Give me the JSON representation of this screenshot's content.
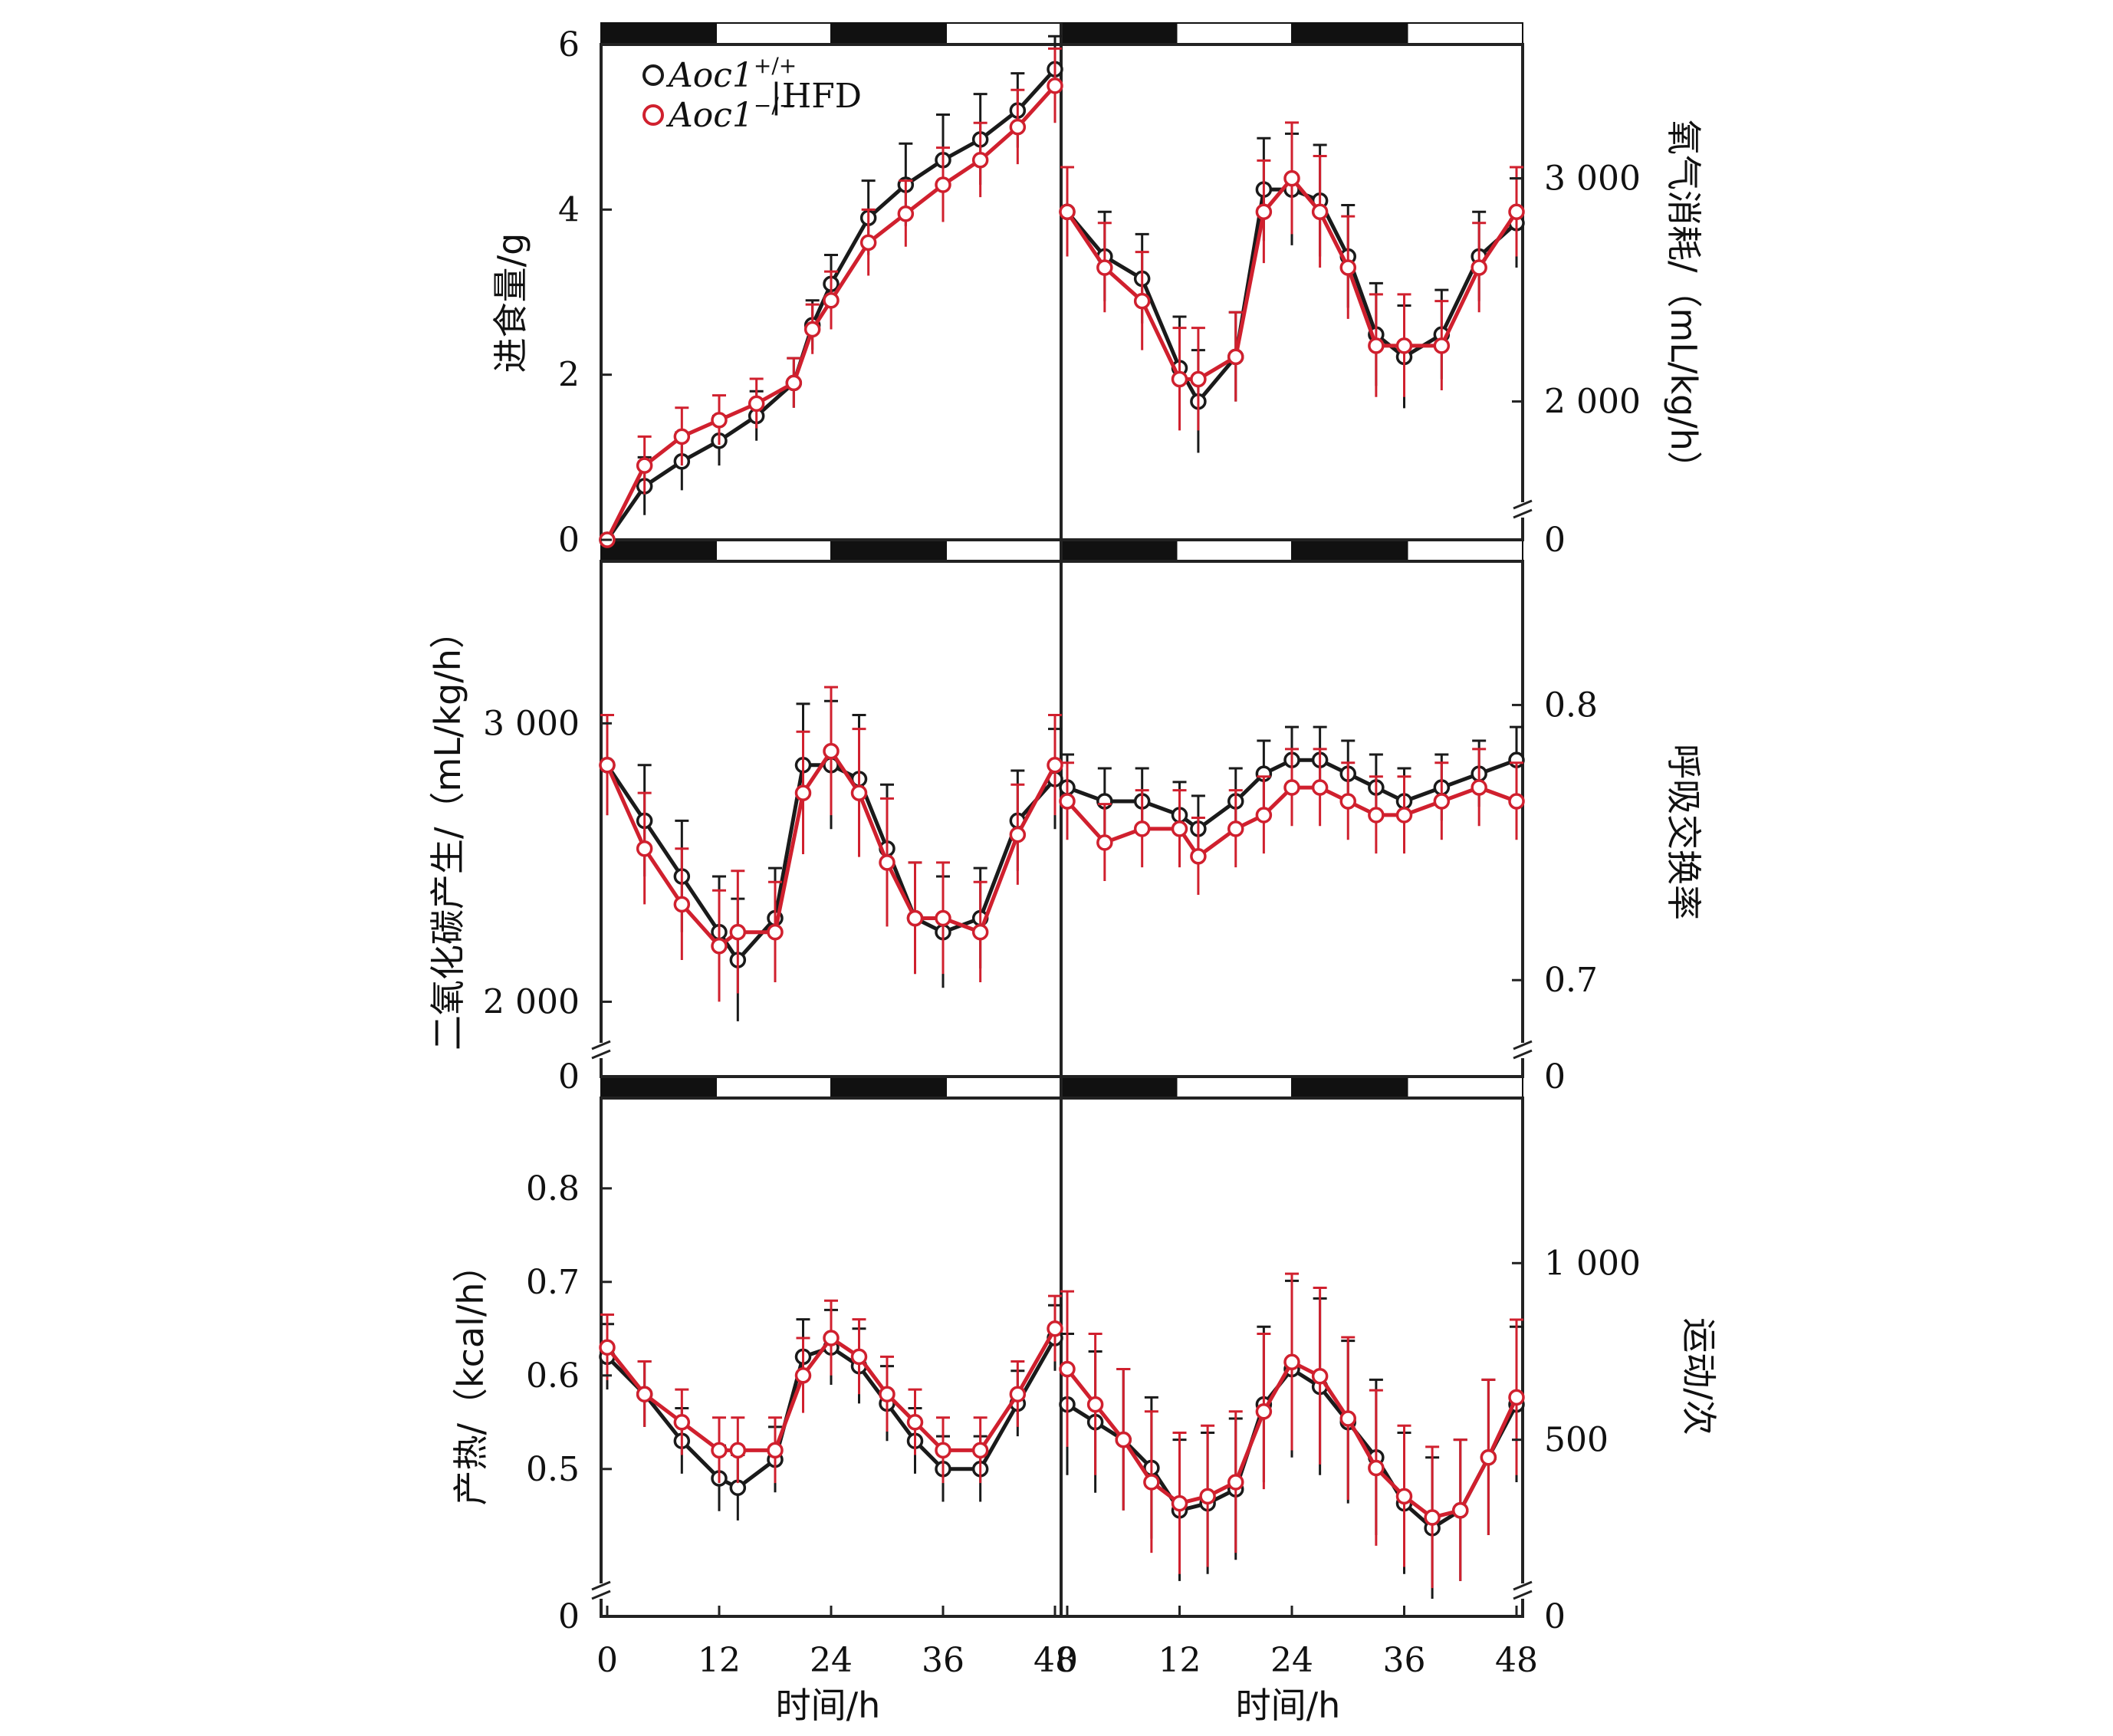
{
  "colors": {
    "wt": "#1a1a1a",
    "ko": "#d0202e"
  },
  "legend": {
    "wt_gene": "Aoc1",
    "wt_sup": "+/+",
    "ko_gene": "Aoc1",
    "ko_sup": "−/−",
    "condition": "|HFD"
  },
  "x_axis": {
    "ticks": [
      0,
      12,
      24,
      36,
      48
    ],
    "title": "时间/h"
  },
  "light_dark_bar": [
    {
      "start": 0,
      "end": 12,
      "phase": "dark"
    },
    {
      "start": 12,
      "end": 24,
      "phase": "light"
    },
    {
      "start": 24,
      "end": 36,
      "phase": "dark"
    },
    {
      "start": 36,
      "end": 48,
      "phase": "light"
    }
  ],
  "chart_data": [
    {
      "type": "line",
      "id": "food",
      "ylabel": "进食量/g",
      "xlim": [
        0,
        48
      ],
      "ylim": [
        0,
        6
      ],
      "ytick_values": [
        0,
        2,
        4,
        6
      ],
      "ytick_labels": [
        "0",
        "2",
        "4",
        "6"
      ],
      "axis_break": false,
      "series": [
        {
          "id": "wt",
          "x": [
            0,
            4,
            8,
            12,
            16,
            20,
            22,
            24,
            28,
            32,
            36,
            40,
            44,
            48
          ],
          "y": [
            0,
            0.65,
            0.95,
            1.2,
            1.5,
            1.9,
            2.6,
            3.1,
            3.9,
            4.3,
            4.6,
            4.85,
            5.2,
            5.7
          ],
          "err": [
            0.05,
            0.35,
            0.35,
            0.3,
            0.3,
            0.3,
            0.3,
            0.35,
            0.45,
            0.5,
            0.55,
            0.55,
            0.45,
            0.4
          ]
        },
        {
          "id": "ko",
          "x": [
            0,
            4,
            8,
            12,
            16,
            20,
            22,
            24,
            28,
            32,
            36,
            40,
            44,
            48
          ],
          "y": [
            0,
            0.9,
            1.25,
            1.45,
            1.65,
            1.9,
            2.55,
            2.9,
            3.6,
            3.95,
            4.3,
            4.6,
            5.0,
            5.5
          ],
          "err": [
            0.05,
            0.35,
            0.35,
            0.3,
            0.3,
            0.3,
            0.3,
            0.35,
            0.4,
            0.4,
            0.45,
            0.45,
            0.45,
            0.45
          ]
        }
      ]
    },
    {
      "type": "line",
      "id": "vo2",
      "ylabel": "氧气消耗/（mL/kg/h）",
      "xlim": [
        0,
        48
      ],
      "ylim": [
        1600,
        3600
      ],
      "ytick_values": [
        2000,
        3000
      ],
      "ytick_labels": [
        "2 000",
        "3 000"
      ],
      "zero_label": "0",
      "axis_break": true,
      "series": [
        {
          "id": "wt",
          "x": [
            0,
            4,
            8,
            12,
            14,
            18,
            21,
            24,
            27,
            30,
            33,
            36,
            40,
            44,
            48
          ],
          "y": [
            2850,
            2650,
            2550,
            2150,
            2000,
            2200,
            2950,
            2950,
            2900,
            2650,
            2300,
            2200,
            2300,
            2650,
            2800
          ],
          "err": [
            200,
            200,
            200,
            230,
            230,
            200,
            230,
            250,
            250,
            230,
            230,
            230,
            200,
            200,
            200
          ]
        },
        {
          "id": "ko",
          "x": [
            0,
            4,
            8,
            12,
            14,
            18,
            21,
            24,
            27,
            30,
            33,
            36,
            40,
            44,
            48
          ],
          "y": [
            2850,
            2600,
            2450,
            2100,
            2100,
            2200,
            2850,
            3000,
            2850,
            2600,
            2250,
            2250,
            2250,
            2600,
            2850
          ],
          "err": [
            200,
            200,
            220,
            230,
            230,
            200,
            230,
            250,
            250,
            230,
            230,
            230,
            200,
            200,
            200
          ]
        }
      ]
    },
    {
      "type": "line",
      "id": "vco2",
      "ylabel": "二氧化碳产生/（mL/kg/h）",
      "xlim": [
        0,
        48
      ],
      "ylim": [
        1880,
        3560
      ],
      "ytick_values": [
        2000,
        3000
      ],
      "ytick_labels": [
        "2 000",
        "3 000"
      ],
      "zero_label": "0",
      "axis_break": true,
      "series": [
        {
          "id": "wt",
          "x": [
            0,
            4,
            8,
            12,
            14,
            18,
            21,
            24,
            27,
            30,
            33,
            36,
            40,
            44,
            48
          ],
          "y": [
            2850,
            2650,
            2450,
            2250,
            2150,
            2300,
            2850,
            2850,
            2800,
            2550,
            2300,
            2250,
            2300,
            2650,
            2800
          ],
          "err": [
            180,
            200,
            200,
            200,
            220,
            180,
            220,
            230,
            230,
            230,
            200,
            200,
            180,
            180,
            180
          ]
        },
        {
          "id": "ko",
          "x": [
            0,
            4,
            8,
            12,
            14,
            18,
            21,
            24,
            27,
            30,
            33,
            36,
            40,
            44,
            48
          ],
          "y": [
            2850,
            2550,
            2350,
            2200,
            2250,
            2250,
            2750,
            2900,
            2750,
            2500,
            2300,
            2300,
            2250,
            2600,
            2850
          ],
          "err": [
            180,
            200,
            200,
            200,
            220,
            180,
            220,
            230,
            230,
            230,
            200,
            200,
            180,
            180,
            180
          ]
        }
      ]
    },
    {
      "type": "line",
      "id": "rer",
      "ylabel": "呼吸交换率",
      "xlim": [
        0,
        48
      ],
      "ylim": [
        0.68,
        0.85
      ],
      "ytick_values": [
        0.7,
        0.8
      ],
      "ytick_labels": [
        "0.7",
        "0.8"
      ],
      "zero_label": "0",
      "axis_break": true,
      "series": [
        {
          "id": "wt",
          "x": [
            0,
            4,
            8,
            12,
            14,
            18,
            21,
            24,
            27,
            30,
            33,
            36,
            40,
            44,
            48
          ],
          "y": [
            0.77,
            0.765,
            0.765,
            0.76,
            0.755,
            0.765,
            0.775,
            0.78,
            0.78,
            0.775,
            0.77,
            0.765,
            0.77,
            0.775,
            0.78
          ],
          "err": [
            0.012,
            0.012,
            0.012,
            0.012,
            0.012,
            0.012,
            0.012,
            0.012,
            0.012,
            0.012,
            0.012,
            0.012,
            0.012,
            0.012,
            0.012
          ]
        },
        {
          "id": "ko",
          "x": [
            0,
            4,
            8,
            12,
            14,
            18,
            21,
            24,
            27,
            30,
            33,
            36,
            40,
            44,
            48
          ],
          "y": [
            0.765,
            0.75,
            0.755,
            0.755,
            0.745,
            0.755,
            0.76,
            0.77,
            0.77,
            0.765,
            0.76,
            0.76,
            0.765,
            0.77,
            0.765
          ],
          "err": [
            0.014,
            0.014,
            0.014,
            0.014,
            0.014,
            0.014,
            0.014,
            0.014,
            0.014,
            0.014,
            0.014,
            0.014,
            0.014,
            0.014,
            0.014
          ]
        }
      ]
    },
    {
      "type": "line",
      "id": "heat",
      "ylabel": "产热/（kcal/h）",
      "xlim": [
        0,
        48
      ],
      "ylim": [
        0.39,
        0.89
      ],
      "ytick_values": [
        0.5,
        0.6,
        0.7,
        0.8
      ],
      "ytick_labels": [
        "0.5",
        "0.6",
        "0.7",
        "0.8"
      ],
      "zero_label": "0",
      "axis_break": true,
      "series": [
        {
          "id": "wt",
          "x": [
            0,
            4,
            8,
            12,
            14,
            18,
            21,
            24,
            27,
            30,
            33,
            36,
            40,
            44,
            48
          ],
          "y": [
            0.62,
            0.58,
            0.53,
            0.49,
            0.48,
            0.51,
            0.62,
            0.63,
            0.61,
            0.57,
            0.53,
            0.5,
            0.5,
            0.57,
            0.64
          ],
          "err": [
            0.035,
            0.035,
            0.035,
            0.035,
            0.035,
            0.035,
            0.04,
            0.04,
            0.04,
            0.04,
            0.035,
            0.035,
            0.035,
            0.035,
            0.035
          ]
        },
        {
          "id": "ko",
          "x": [
            0,
            4,
            8,
            12,
            14,
            18,
            21,
            24,
            27,
            30,
            33,
            36,
            40,
            44,
            48
          ],
          "y": [
            0.63,
            0.58,
            0.55,
            0.52,
            0.52,
            0.52,
            0.6,
            0.64,
            0.62,
            0.58,
            0.55,
            0.52,
            0.52,
            0.58,
            0.65
          ],
          "err": [
            0.035,
            0.035,
            0.035,
            0.035,
            0.035,
            0.035,
            0.04,
            0.04,
            0.04,
            0.04,
            0.035,
            0.035,
            0.035,
            0.035,
            0.035
          ]
        }
      ]
    },
    {
      "type": "line",
      "id": "activity",
      "ylabel": "运动/次",
      "xlim": [
        0,
        48
      ],
      "ylim": [
        0,
        1450
      ],
      "ytick_values": [
        0,
        500,
        1000
      ],
      "ytick_labels": [
        "0",
        "500",
        "1 000"
      ],
      "axis_break": true,
      "series": [
        {
          "id": "wt",
          "x": [
            0,
            3,
            6,
            9,
            12,
            15,
            18,
            21,
            24,
            27,
            30,
            33,
            36,
            39,
            42,
            45,
            48
          ],
          "y": [
            600,
            550,
            500,
            420,
            300,
            320,
            360,
            600,
            700,
            650,
            550,
            450,
            320,
            250,
            300,
            450,
            600
          ],
          "err": [
            200,
            200,
            200,
            200,
            200,
            200,
            200,
            220,
            250,
            250,
            230,
            220,
            200,
            200,
            200,
            220,
            220
          ]
        },
        {
          "id": "ko",
          "x": [
            0,
            3,
            6,
            9,
            12,
            15,
            18,
            21,
            24,
            27,
            30,
            33,
            36,
            39,
            42,
            45,
            48
          ],
          "y": [
            700,
            600,
            500,
            380,
            320,
            340,
            380,
            580,
            720,
            680,
            560,
            420,
            340,
            280,
            300,
            450,
            620
          ],
          "err": [
            220,
            200,
            200,
            200,
            200,
            200,
            200,
            220,
            250,
            250,
            230,
            220,
            200,
            200,
            200,
            220,
            220
          ]
        }
      ]
    }
  ]
}
